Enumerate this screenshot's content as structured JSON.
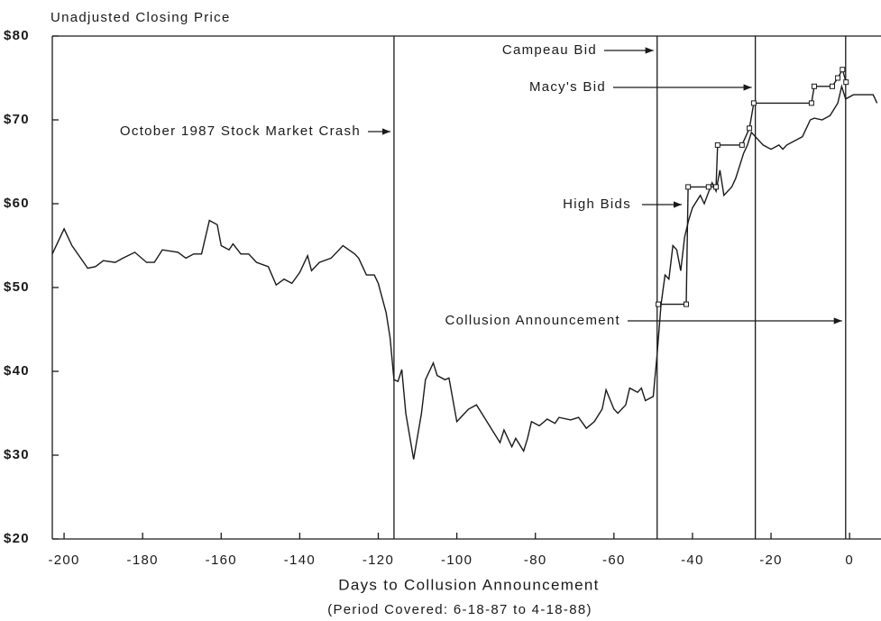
{
  "chart_data": {
    "type": "line",
    "ylabel": "Unadjusted Closing Price",
    "xlabel": "Days to Collusion Announcement",
    "subtitle": "(Period Covered:  6-18-87 to 4-18-88)",
    "xlim": [
      -203,
      8
    ],
    "ylim": [
      20,
      80
    ],
    "xticks": [
      -200,
      -180,
      -160,
      -140,
      -120,
      -100,
      -80,
      -60,
      -40,
      -20,
      0
    ],
    "yticks": [
      {
        "value": 20,
        "label": "$20"
      },
      {
        "value": 30,
        "label": "$30"
      },
      {
        "value": 40,
        "label": "$40"
      },
      {
        "value": 50,
        "label": "$50"
      },
      {
        "value": 60,
        "label": "$60"
      },
      {
        "value": 70,
        "label": "$70"
      },
      {
        "value": 80,
        "label": "$80"
      }
    ],
    "series": [
      {
        "color": "#1a1a1a",
        "x": [
          -203,
          -201,
          -200,
          -198,
          -195,
          -194,
          -192,
          -190,
          -187,
          -185,
          -182,
          -179,
          -177,
          -175,
          -171,
          -169,
          -167,
          -165,
          -163,
          -161,
          -160,
          -158,
          -157,
          -155,
          -153,
          -151,
          -148,
          -146,
          -144,
          -142,
          -140,
          -138,
          -137,
          -135,
          -132,
          -131,
          -129,
          -126,
          -125,
          -123,
          -121,
          -120,
          -118,
          -117,
          -116,
          -115,
          -114,
          -113,
          -111,
          -109,
          -108,
          -106,
          -105,
          -103,
          -102,
          -100,
          -98,
          -97,
          -95,
          -93,
          -91,
          -89,
          -88,
          -86,
          -85,
          -83,
          -82,
          -81,
          -79,
          -77,
          -75,
          -74,
          -71,
          -69,
          -67,
          -65,
          -63,
          -62,
          -60,
          -59,
          -57,
          -56,
          -54,
          -53,
          -52,
          -50,
          -49,
          -48,
          -47,
          -46,
          -45,
          -44,
          -43,
          -42,
          -41,
          -40,
          -38,
          -37,
          -35,
          -34,
          -33,
          -32,
          -30,
          -29,
          -27,
          -26,
          -25,
          -23,
          -22,
          -20,
          -18,
          -17,
          -16,
          -14,
          -12,
          -10,
          -9,
          -7,
          -5,
          -3,
          -2,
          -1,
          1,
          4,
          6,
          7
        ],
        "values": [
          54,
          56,
          57,
          55,
          53,
          52.3,
          52.5,
          53.2,
          53,
          53.5,
          54.2,
          53,
          53,
          54.5,
          54.2,
          53.5,
          54,
          54,
          58,
          57.5,
          55,
          54.5,
          55.2,
          54,
          54,
          53,
          52.5,
          50.3,
          51,
          50.5,
          51.8,
          53.8,
          52,
          53,
          53.5,
          54,
          55,
          54,
          53.5,
          51.5,
          51.5,
          50.5,
          47,
          44,
          39,
          38.8,
          40.2,
          35,
          29.5,
          35,
          39,
          41,
          39.5,
          39,
          39.2,
          34,
          35,
          35.5,
          36,
          34.5,
          33,
          31.5,
          33,
          31,
          32,
          30.5,
          32,
          34,
          33.5,
          34.3,
          33.8,
          34.5,
          34.2,
          34.5,
          33.2,
          34,
          35.5,
          37.8,
          35.5,
          35,
          36,
          38,
          37.5,
          38,
          36.5,
          37,
          42,
          48,
          51.5,
          51,
          55,
          54.5,
          52,
          56,
          58,
          59.5,
          61,
          60,
          62.5,
          61.5,
          64,
          61,
          62,
          63,
          66,
          67,
          68.5,
          67.5,
          67,
          66.5,
          67,
          66.5,
          67,
          67.5,
          68,
          70,
          70.2,
          70,
          70.5,
          72,
          74,
          72.5,
          73,
          73,
          73,
          72
        ]
      },
      {
        "color": "#1a1a1a",
        "markers": true,
        "x": [
          -48.7,
          -41.6,
          -41.1,
          -35.9,
          -34,
          -33.6,
          -27.4,
          -25.5,
          -24.4,
          -9.7,
          -9,
          -4.4,
          -3,
          -1.8,
          -0.9
        ],
        "values": [
          48,
          48,
          62,
          62,
          62,
          67,
          67,
          69,
          72,
          72,
          74,
          74,
          75,
          76,
          74.5
        ]
      }
    ],
    "vlines": [
      {
        "x": -116,
        "label": "October 1987 Stock Market Crash"
      },
      {
        "x": -49,
        "label": "Campeau Bid"
      },
      {
        "x": -24,
        "label": "Macy's Bid"
      },
      {
        "x": -1,
        "label": "Collusion Announcement"
      }
    ],
    "annotations": [
      {
        "text": "High Bids"
      }
    ]
  }
}
